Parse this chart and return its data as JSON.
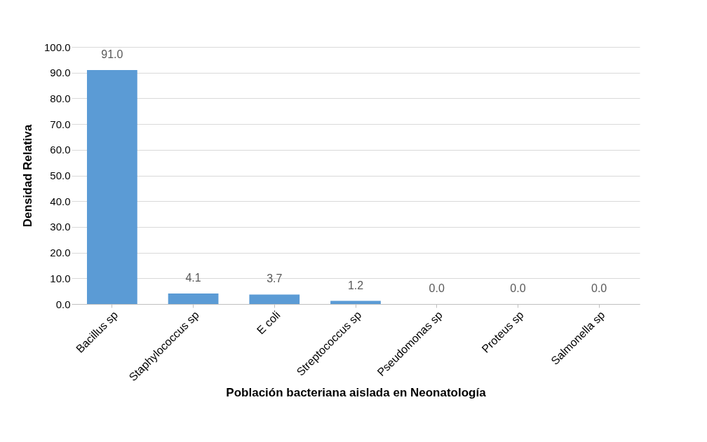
{
  "chart_data": {
    "type": "bar",
    "xlabel": "Población bacteriana aislada en Neonatología",
    "ylabel": "Densidad Relativa",
    "categories": [
      "Bacillus sp",
      "Staphylococcus sp",
      "E coli",
      "Streptococcus sp",
      "Pseudomonas sp",
      "Proteus sp",
      "Salmonella sp"
    ],
    "values": [
      91.0,
      4.1,
      3.7,
      1.2,
      0.0,
      0.0,
      0.0
    ],
    "value_labels": [
      "91.0",
      "4.1",
      "3.7",
      "1.2",
      "0.0",
      "0.0",
      "0.0"
    ],
    "color": "#5b9bd5",
    "ylim": [
      0,
      100
    ],
    "yticks": [
      {
        "value": 0,
        "label": "0.0"
      },
      {
        "value": 10,
        "label": "10.0"
      },
      {
        "value": 20,
        "label": "20.0"
      },
      {
        "value": 30,
        "label": "30.0"
      },
      {
        "value": 40,
        "label": "40.0"
      },
      {
        "value": 50,
        "label": "50.0"
      },
      {
        "value": 60,
        "label": "60.0"
      },
      {
        "value": 70,
        "label": "70.0"
      },
      {
        "value": 80,
        "label": "80.0"
      },
      {
        "value": 90,
        "label": "90.0"
      },
      {
        "value": 100,
        "label": "100.0"
      }
    ],
    "grid": "y"
  }
}
